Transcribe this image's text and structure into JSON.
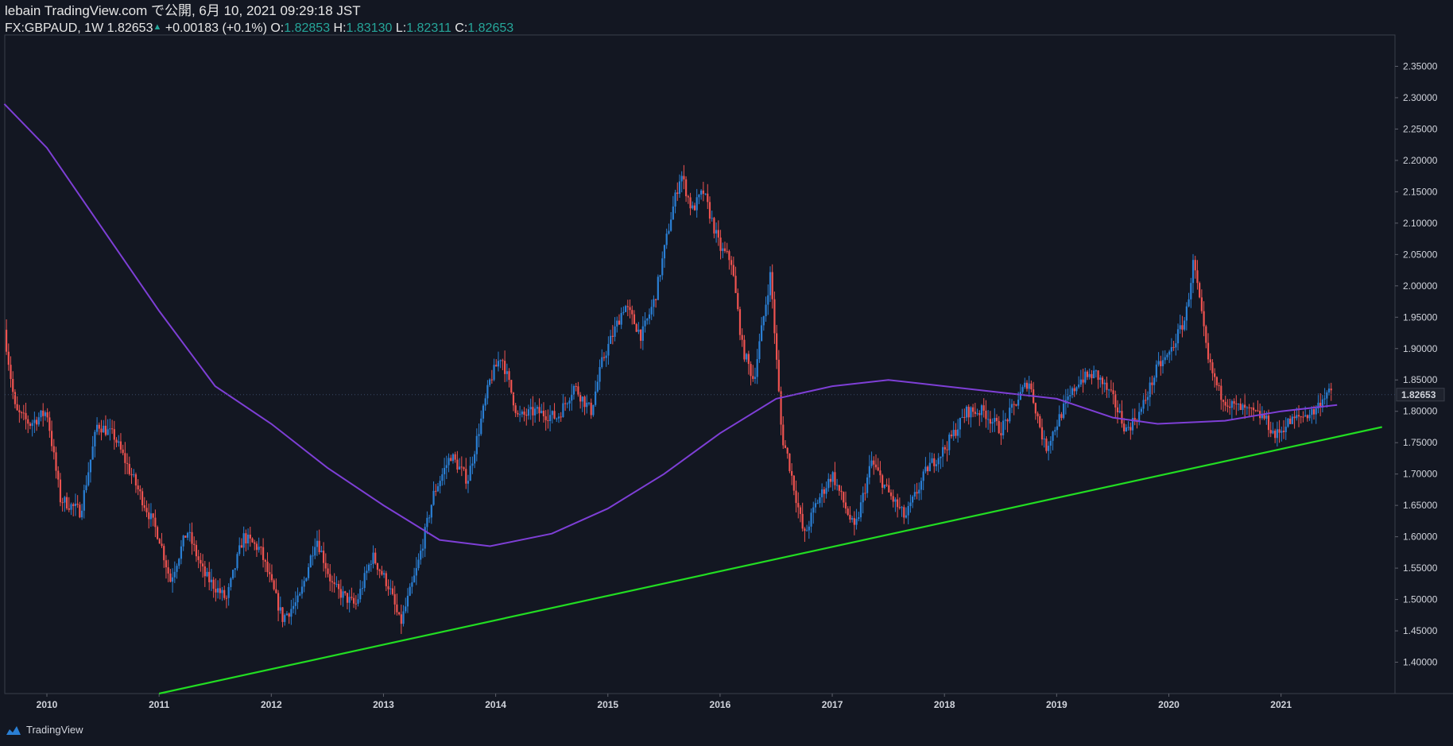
{
  "header": {
    "publisher": "lebain TradingView.com で公開, 6月 10, 2021 09:29:18 JST",
    "symbol": "FX:GBPAUD, 1W",
    "last": "1.82653",
    "change": "+0.00183 (+0.1%)",
    "o_label": "O:",
    "o_val": "1.82853",
    "h_label": "H:",
    "h_val": "1.83130",
    "l_label": "L:",
    "l_val": "1.82311",
    "c_label": "C:",
    "c_val": "1.82653"
  },
  "footer": {
    "brand": "TradingView"
  },
  "colors": {
    "bg": "#131722",
    "up": "#2a7fd4",
    "down": "#ef5350",
    "ma": "#7e3fd6",
    "trend": "#22dd22"
  },
  "chart_data": {
    "type": "candlestick",
    "title": "FX:GBPAUD, 1W",
    "xlabel": "",
    "ylabel": "",
    "ylim": [
      1.35,
      2.4
    ],
    "x_ticks": [
      "2010",
      "2011",
      "2012",
      "2013",
      "2014",
      "2015",
      "2016",
      "2017",
      "2018",
      "2019",
      "2020",
      "2021"
    ],
    "y_ticks": [
      "2.35000",
      "2.30000",
      "2.25000",
      "2.20000",
      "2.15000",
      "2.10000",
      "2.05000",
      "2.00000",
      "1.95000",
      "1.90000",
      "1.85000",
      "1.80000",
      "1.75000",
      "1.70000",
      "1.65000",
      "1.60000",
      "1.55000",
      "1.50000",
      "1.45000",
      "1.40000"
    ],
    "price_label": "1.82653",
    "price_path": [
      [
        2009.62,
        1.93
      ],
      [
        2009.72,
        1.8
      ],
      [
        2009.85,
        1.78
      ],
      [
        2010.0,
        1.8
      ],
      [
        2010.12,
        1.66
      ],
      [
        2010.3,
        1.64
      ],
      [
        2010.45,
        1.78
      ],
      [
        2010.6,
        1.76
      ],
      [
        2010.8,
        1.68
      ],
      [
        2011.0,
        1.6
      ],
      [
        2011.1,
        1.53
      ],
      [
        2011.25,
        1.61
      ],
      [
        2011.4,
        1.54
      ],
      [
        2011.6,
        1.5
      ],
      [
        2011.75,
        1.6
      ],
      [
        2011.9,
        1.58
      ],
      [
        2012.1,
        1.47
      ],
      [
        2012.25,
        1.5
      ],
      [
        2012.4,
        1.6
      ],
      [
        2012.55,
        1.52
      ],
      [
        2012.75,
        1.49
      ],
      [
        2012.9,
        1.57
      ],
      [
        2013.05,
        1.52
      ],
      [
        2013.15,
        1.46
      ],
      [
        2013.3,
        1.55
      ],
      [
        2013.45,
        1.67
      ],
      [
        2013.6,
        1.73
      ],
      [
        2013.75,
        1.69
      ],
      [
        2013.95,
        1.85
      ],
      [
        2014.05,
        1.89
      ],
      [
        2014.2,
        1.79
      ],
      [
        2014.35,
        1.8
      ],
      [
        2014.55,
        1.79
      ],
      [
        2014.7,
        1.84
      ],
      [
        2014.85,
        1.8
      ],
      [
        2014.95,
        1.88
      ],
      [
        2015.15,
        1.97
      ],
      [
        2015.3,
        1.92
      ],
      [
        2015.42,
        1.98
      ],
      [
        2015.55,
        2.1
      ],
      [
        2015.65,
        2.18
      ],
      [
        2015.75,
        2.12
      ],
      [
        2015.85,
        2.15
      ],
      [
        2016.0,
        2.06
      ],
      [
        2016.1,
        2.04
      ],
      [
        2016.2,
        1.9
      ],
      [
        2016.3,
        1.85
      ],
      [
        2016.45,
        2.02
      ],
      [
        2016.55,
        1.76
      ],
      [
        2016.6,
        1.73
      ],
      [
        2016.75,
        1.6
      ],
      [
        2016.85,
        1.65
      ],
      [
        2017.0,
        1.7
      ],
      [
        2017.2,
        1.61
      ],
      [
        2017.35,
        1.72
      ],
      [
        2017.5,
        1.67
      ],
      [
        2017.65,
        1.63
      ],
      [
        2017.85,
        1.71
      ],
      [
        2018.0,
        1.74
      ],
      [
        2018.2,
        1.8
      ],
      [
        2018.35,
        1.8
      ],
      [
        2018.5,
        1.77
      ],
      [
        2018.75,
        1.85
      ],
      [
        2018.9,
        1.74
      ],
      [
        2019.05,
        1.8
      ],
      [
        2019.2,
        1.85
      ],
      [
        2019.35,
        1.86
      ],
      [
        2019.5,
        1.82
      ],
      [
        2019.62,
        1.77
      ],
      [
        2019.75,
        1.8
      ],
      [
        2019.9,
        1.87
      ],
      [
        2020.0,
        1.89
      ],
      [
        2020.15,
        1.95
      ],
      [
        2020.22,
        2.04
      ],
      [
        2020.35,
        1.88
      ],
      [
        2020.45,
        1.83
      ],
      [
        2020.55,
        1.81
      ],
      [
        2020.7,
        1.8
      ],
      [
        2020.85,
        1.79
      ],
      [
        2020.95,
        1.76
      ],
      [
        2021.05,
        1.78
      ],
      [
        2021.15,
        1.79
      ],
      [
        2021.3,
        1.8
      ],
      [
        2021.4,
        1.83
      ],
      [
        2021.45,
        1.8265
      ]
    ],
    "series": [
      {
        "name": "Moving average",
        "points": [
          [
            2009.62,
            2.29
          ],
          [
            2010.0,
            2.22
          ],
          [
            2010.5,
            2.09
          ],
          [
            2011.0,
            1.96
          ],
          [
            2011.5,
            1.84
          ],
          [
            2012.0,
            1.78
          ],
          [
            2012.5,
            1.71
          ],
          [
            2013.0,
            1.65
          ],
          [
            2013.5,
            1.595
          ],
          [
            2013.95,
            1.585
          ],
          [
            2014.5,
            1.605
          ],
          [
            2015.0,
            1.645
          ],
          [
            2015.5,
            1.7
          ],
          [
            2016.0,
            1.765
          ],
          [
            2016.5,
            1.82
          ],
          [
            2017.0,
            1.84
          ],
          [
            2017.5,
            1.85
          ],
          [
            2018.0,
            1.84
          ],
          [
            2018.5,
            1.83
          ],
          [
            2019.0,
            1.82
          ],
          [
            2019.5,
            1.79
          ],
          [
            2019.9,
            1.78
          ],
          [
            2020.5,
            1.785
          ],
          [
            2021.0,
            1.8
          ],
          [
            2021.5,
            1.81
          ]
        ]
      },
      {
        "name": "Trend line",
        "points": [
          [
            2011.0,
            1.35
          ],
          [
            2021.9,
            1.775
          ]
        ]
      }
    ]
  }
}
